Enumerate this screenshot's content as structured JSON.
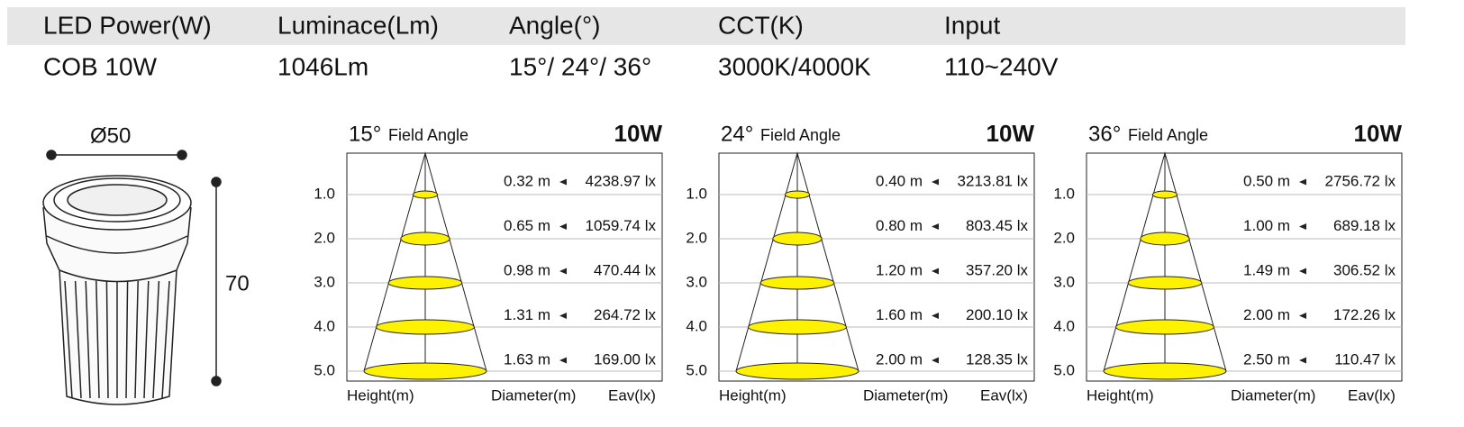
{
  "header": {
    "columns": [
      {
        "label": "LED Power(W)",
        "value": "COB 10W"
      },
      {
        "label": "Luminace(Lm)",
        "value": "1046Lm"
      },
      {
        "label": "Angle(°)",
        "value": "15°/ 24°/ 36°"
      },
      {
        "label": "CCT(K)",
        "value": "3000K/4000K"
      },
      {
        "label": "Input",
        "value": "110~240V"
      }
    ]
  },
  "dimensions": {
    "diameter": "Ø50",
    "height": "70"
  },
  "diagrams": [
    {
      "angle": "15°",
      "caption": "Field Angle",
      "power": "10W",
      "heights": [
        "1.0",
        "2.0",
        "3.0",
        "4.0",
        "5.0"
      ],
      "rows": [
        {
          "diameter": "0.32 m",
          "eav": "4238.97 lx"
        },
        {
          "diameter": "0.65 m",
          "eav": "1059.74 lx"
        },
        {
          "diameter": "0.98 m",
          "eav": "470.44 lx"
        },
        {
          "diameter": "1.31 m",
          "eav": "264.72 lx"
        },
        {
          "diameter": "1.63 m",
          "eav": "169.00 lx"
        }
      ],
      "footer": {
        "height": "Height(m)",
        "diameter": "Diameter(m)",
        "eav": "Eav(lx)"
      }
    },
    {
      "angle": "24°",
      "caption": "Field Angle",
      "power": "10W",
      "heights": [
        "1.0",
        "2.0",
        "3.0",
        "4.0",
        "5.0"
      ],
      "rows": [
        {
          "diameter": "0.40 m",
          "eav": "3213.81 lx"
        },
        {
          "diameter": "0.80 m",
          "eav": "803.45 lx"
        },
        {
          "diameter": "1.20 m",
          "eav": "357.20 lx"
        },
        {
          "diameter": "1.60 m",
          "eav": "200.10 lx"
        },
        {
          "diameter": "2.00 m",
          "eav": "128.35 lx"
        }
      ],
      "footer": {
        "height": "Height(m)",
        "diameter": "Diameter(m)",
        "eav": "Eav(lx)"
      }
    },
    {
      "angle": "36°",
      "caption": "Field Angle",
      "power": "10W",
      "heights": [
        "1.0",
        "2.0",
        "3.0",
        "4.0",
        "5.0"
      ],
      "rows": [
        {
          "diameter": "0.50 m",
          "eav": "2756.72 lx"
        },
        {
          "diameter": "1.00 m",
          "eav": "689.18 lx"
        },
        {
          "diameter": "1.49 m",
          "eav": "306.52 lx"
        },
        {
          "diameter": "2.00 m",
          "eav": "172.26 lx"
        },
        {
          "diameter": "2.50 m",
          "eav": "110.47 lx"
        }
      ],
      "footer": {
        "height": "Height(m)",
        "diameter": "Diameter(m)",
        "eav": "Eav(lx)"
      }
    }
  ]
}
